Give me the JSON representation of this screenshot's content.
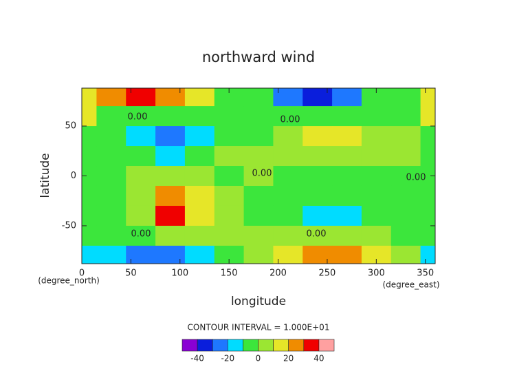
{
  "chart_data": {
    "type": "contour",
    "title": "northward wind",
    "xlabel": "longitude",
    "ylabel": "latitude",
    "xunit": "(degree_east)",
    "yunit": "(degree_north)",
    "x": [
      0,
      30,
      60,
      90,
      120,
      150,
      180,
      210,
      240,
      270,
      300,
      330,
      360
    ],
    "y": [
      80,
      60,
      40,
      20,
      0,
      -20,
      -40,
      -60,
      -80
    ],
    "values": [
      [
        15,
        20,
        35,
        25,
        10,
        -5,
        -10,
        -25,
        -35,
        -25,
        -10,
        -5,
        15
      ],
      [
        10,
        -2,
        -3,
        -5,
        -5,
        -2,
        -3,
        -5,
        -5,
        -3,
        -2,
        -5,
        10
      ],
      [
        -3,
        -5,
        -12,
        -25,
        -12,
        -3,
        -2,
        5,
        12,
        15,
        8,
        3,
        -3
      ],
      [
        -2,
        -3,
        -8,
        -18,
        -5,
        3,
        3,
        5,
        5,
        3,
        2,
        2,
        -2
      ],
      [
        -2,
        -2,
        3,
        5,
        3,
        -2,
        3,
        -3,
        -2,
        -2,
        -3,
        -2,
        -2
      ],
      [
        -3,
        -2,
        5,
        25,
        15,
        3,
        -3,
        -3,
        -3,
        -5,
        -3,
        -3,
        -3
      ],
      [
        -5,
        -2,
        8,
        32,
        15,
        5,
        -2,
        -3,
        -12,
        -12,
        -5,
        -3,
        -5
      ],
      [
        -8,
        -5,
        -3,
        3,
        5,
        3,
        5,
        8,
        3,
        2,
        3,
        -2,
        -8
      ],
      [
        -15,
        -18,
        -28,
        -25,
        -12,
        -5,
        5,
        15,
        25,
        20,
        12,
        0,
        -15
      ]
    ],
    "xlim": [
      0,
      360
    ],
    "ylim": [
      -88,
      88
    ],
    "xticks": [
      0,
      50,
      100,
      150,
      200,
      250,
      300,
      350
    ],
    "yticks": [
      -50,
      0,
      50
    ],
    "contour_label": "0.00",
    "contour_interval_text": "CONTOUR INTERVAL = 1.000E+01",
    "levels": [
      -50,
      -40,
      -30,
      -20,
      -10,
      0,
      10,
      20,
      30,
      40,
      50
    ],
    "colors": [
      "#8a00d4",
      "#0a1edc",
      "#1e78ff",
      "#00dcff",
      "#3ce63c",
      "#9be632",
      "#e6e628",
      "#f08c00",
      "#f00000",
      "#ffa0a0"
    ],
    "colorbar_ticks": [
      -40,
      -20,
      0,
      20,
      40
    ]
  }
}
